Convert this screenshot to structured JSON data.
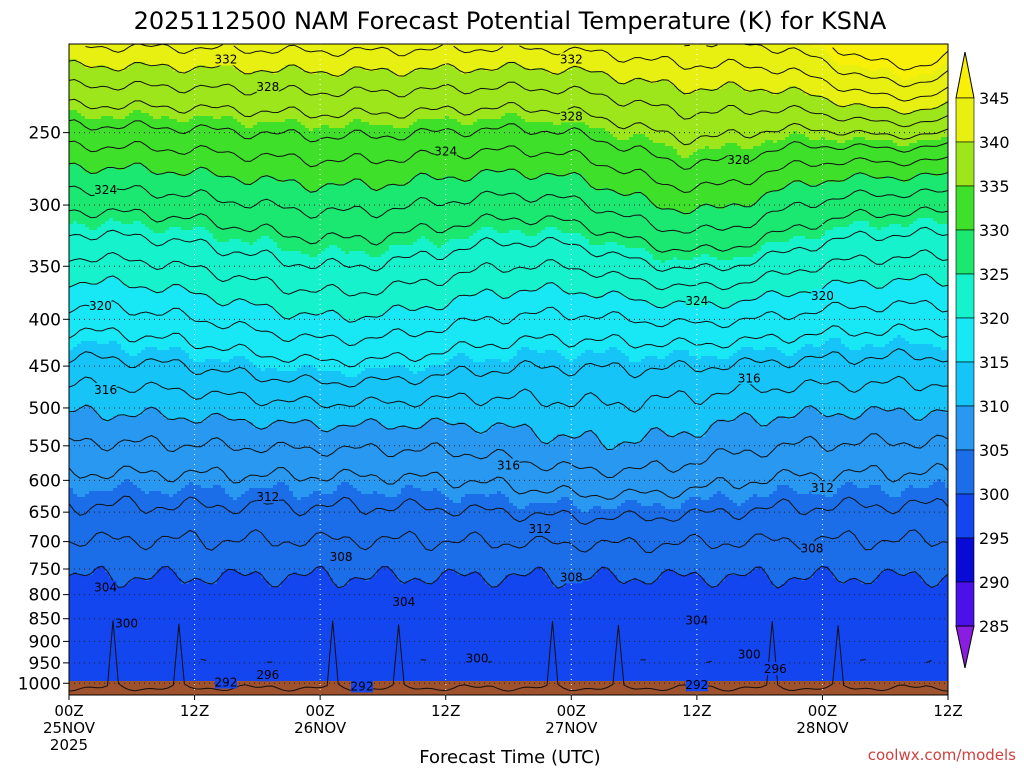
{
  "chart_data": {
    "type": "contour",
    "title": "2025112500 NAM Forecast Potential Temperature (K) for KSNA",
    "xlabel": "Forecast Time (UTC)",
    "ylabel": "",
    "y_scale": "log (pressure, hPa, inverted)",
    "ylim": [
      1030,
      200
    ],
    "xlim_hours": [
      0,
      84
    ],
    "yticks": [
      250,
      300,
      350,
      400,
      450,
      500,
      550,
      600,
      650,
      700,
      750,
      800,
      850,
      900,
      950,
      1000
    ],
    "xticks": [
      {
        "hour": 0,
        "l1": "00Z",
        "l2": "25NOV",
        "l3": "2025"
      },
      {
        "hour": 12,
        "l1": "12Z",
        "l2": "",
        "l3": ""
      },
      {
        "hour": 24,
        "l1": "00Z",
        "l2": "26NOV",
        "l3": ""
      },
      {
        "hour": 36,
        "l1": "12Z",
        "l2": "",
        "l3": ""
      },
      {
        "hour": 48,
        "l1": "00Z",
        "l2": "27NOV",
        "l3": ""
      },
      {
        "hour": 60,
        "l1": "12Z",
        "l2": "",
        "l3": ""
      },
      {
        "hour": 72,
        "l1": "00Z",
        "l2": "28NOV",
        "l3": ""
      },
      {
        "hour": 84,
        "l1": "12Z",
        "l2": "",
        "l3": ""
      }
    ],
    "colorbar": {
      "levels": [
        285,
        290,
        295,
        300,
        305,
        310,
        315,
        320,
        325,
        330,
        335,
        340,
        345
      ],
      "colors": [
        "#8a1ee0",
        "#4a12e8",
        "#0a0ad6",
        "#1446f0",
        "#1c6ee8",
        "#2898f0",
        "#16c4f8",
        "#18e8f6",
        "#16f2cc",
        "#1ae870",
        "#3ee02a",
        "#9ee61c",
        "#e8f012",
        "#f8f008"
      ]
    },
    "contour_labels": [
      {
        "hour": 15,
        "p": 208,
        "text": "332"
      },
      {
        "hour": 19,
        "p": 223,
        "text": "328"
      },
      {
        "hour": 48,
        "p": 208,
        "text": "332"
      },
      {
        "hour": 48,
        "p": 240,
        "text": "328"
      },
      {
        "hour": 64,
        "p": 268,
        "text": "328"
      },
      {
        "hour": 3.5,
        "p": 289,
        "text": "324"
      },
      {
        "hour": 36,
        "p": 262,
        "text": "324"
      },
      {
        "hour": 60,
        "p": 382,
        "text": "324"
      },
      {
        "hour": 3,
        "p": 387,
        "text": "320"
      },
      {
        "hour": 72,
        "p": 377,
        "text": "320"
      },
      {
        "hour": 3.5,
        "p": 478,
        "text": "316"
      },
      {
        "hour": 42,
        "p": 578,
        "text": "316"
      },
      {
        "hour": 65,
        "p": 464,
        "text": "316"
      },
      {
        "hour": 19,
        "p": 626,
        "text": "312"
      },
      {
        "hour": 45,
        "p": 678,
        "text": "312"
      },
      {
        "hour": 72,
        "p": 612,
        "text": "312"
      },
      {
        "hour": 26,
        "p": 728,
        "text": "308"
      },
      {
        "hour": 48,
        "p": 766,
        "text": "308"
      },
      {
        "hour": 71,
        "p": 712,
        "text": "308"
      },
      {
        "hour": 3.5,
        "p": 786,
        "text": "304"
      },
      {
        "hour": 32,
        "p": 815,
        "text": "304"
      },
      {
        "hour": 60,
        "p": 854,
        "text": "304"
      },
      {
        "hour": 5.5,
        "p": 860,
        "text": "300"
      },
      {
        "hour": 39,
        "p": 940,
        "text": "300"
      },
      {
        "hour": 65,
        "p": 930,
        "text": "300"
      },
      {
        "hour": 19,
        "p": 980,
        "text": "296"
      },
      {
        "hour": 67.5,
        "p": 965,
        "text": "296"
      },
      {
        "hour": 15,
        "p": 998,
        "text": "292"
      },
      {
        "hour": 28,
        "p": 1008,
        "text": "292"
      },
      {
        "hour": 60,
        "p": 1005,
        "text": "292"
      }
    ],
    "colorbar_position": "right"
  },
  "credit": "coolwx.com/models"
}
